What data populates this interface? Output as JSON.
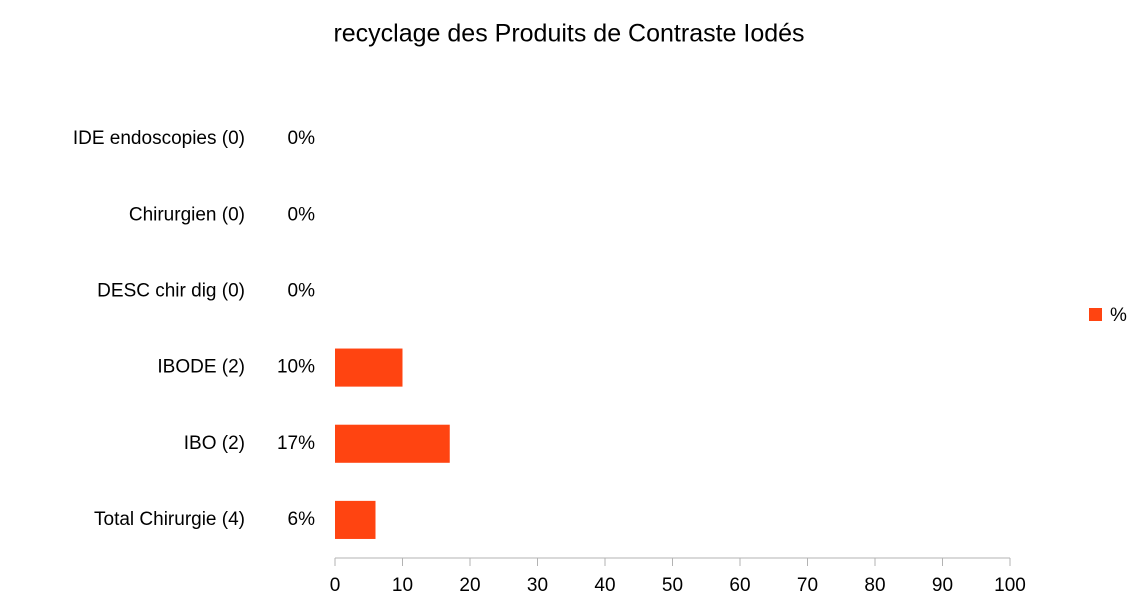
{
  "chart_data": {
    "type": "bar",
    "orientation": "horizontal",
    "title": "recyclage des Produits de Contraste Iodés",
    "categories": [
      "IDE endoscopies (0)",
      "Chirurgien (0)",
      "DESC chir dig (0)",
      "IBODE (2)",
      "IBO (2)",
      "Total Chirurgie (4)"
    ],
    "series": [
      {
        "name": "%",
        "color": "#ff4411",
        "values": [
          0,
          0,
          0,
          10,
          17,
          6
        ],
        "value_labels": [
          "0%",
          "0%",
          "0%",
          "10%",
          "17%",
          "6%"
        ]
      }
    ],
    "xlim": [
      0,
      100
    ],
    "xticks": [
      0,
      10,
      20,
      30,
      40,
      50,
      60,
      70,
      80,
      90,
      100
    ],
    "legend": "right",
    "grid": false
  }
}
